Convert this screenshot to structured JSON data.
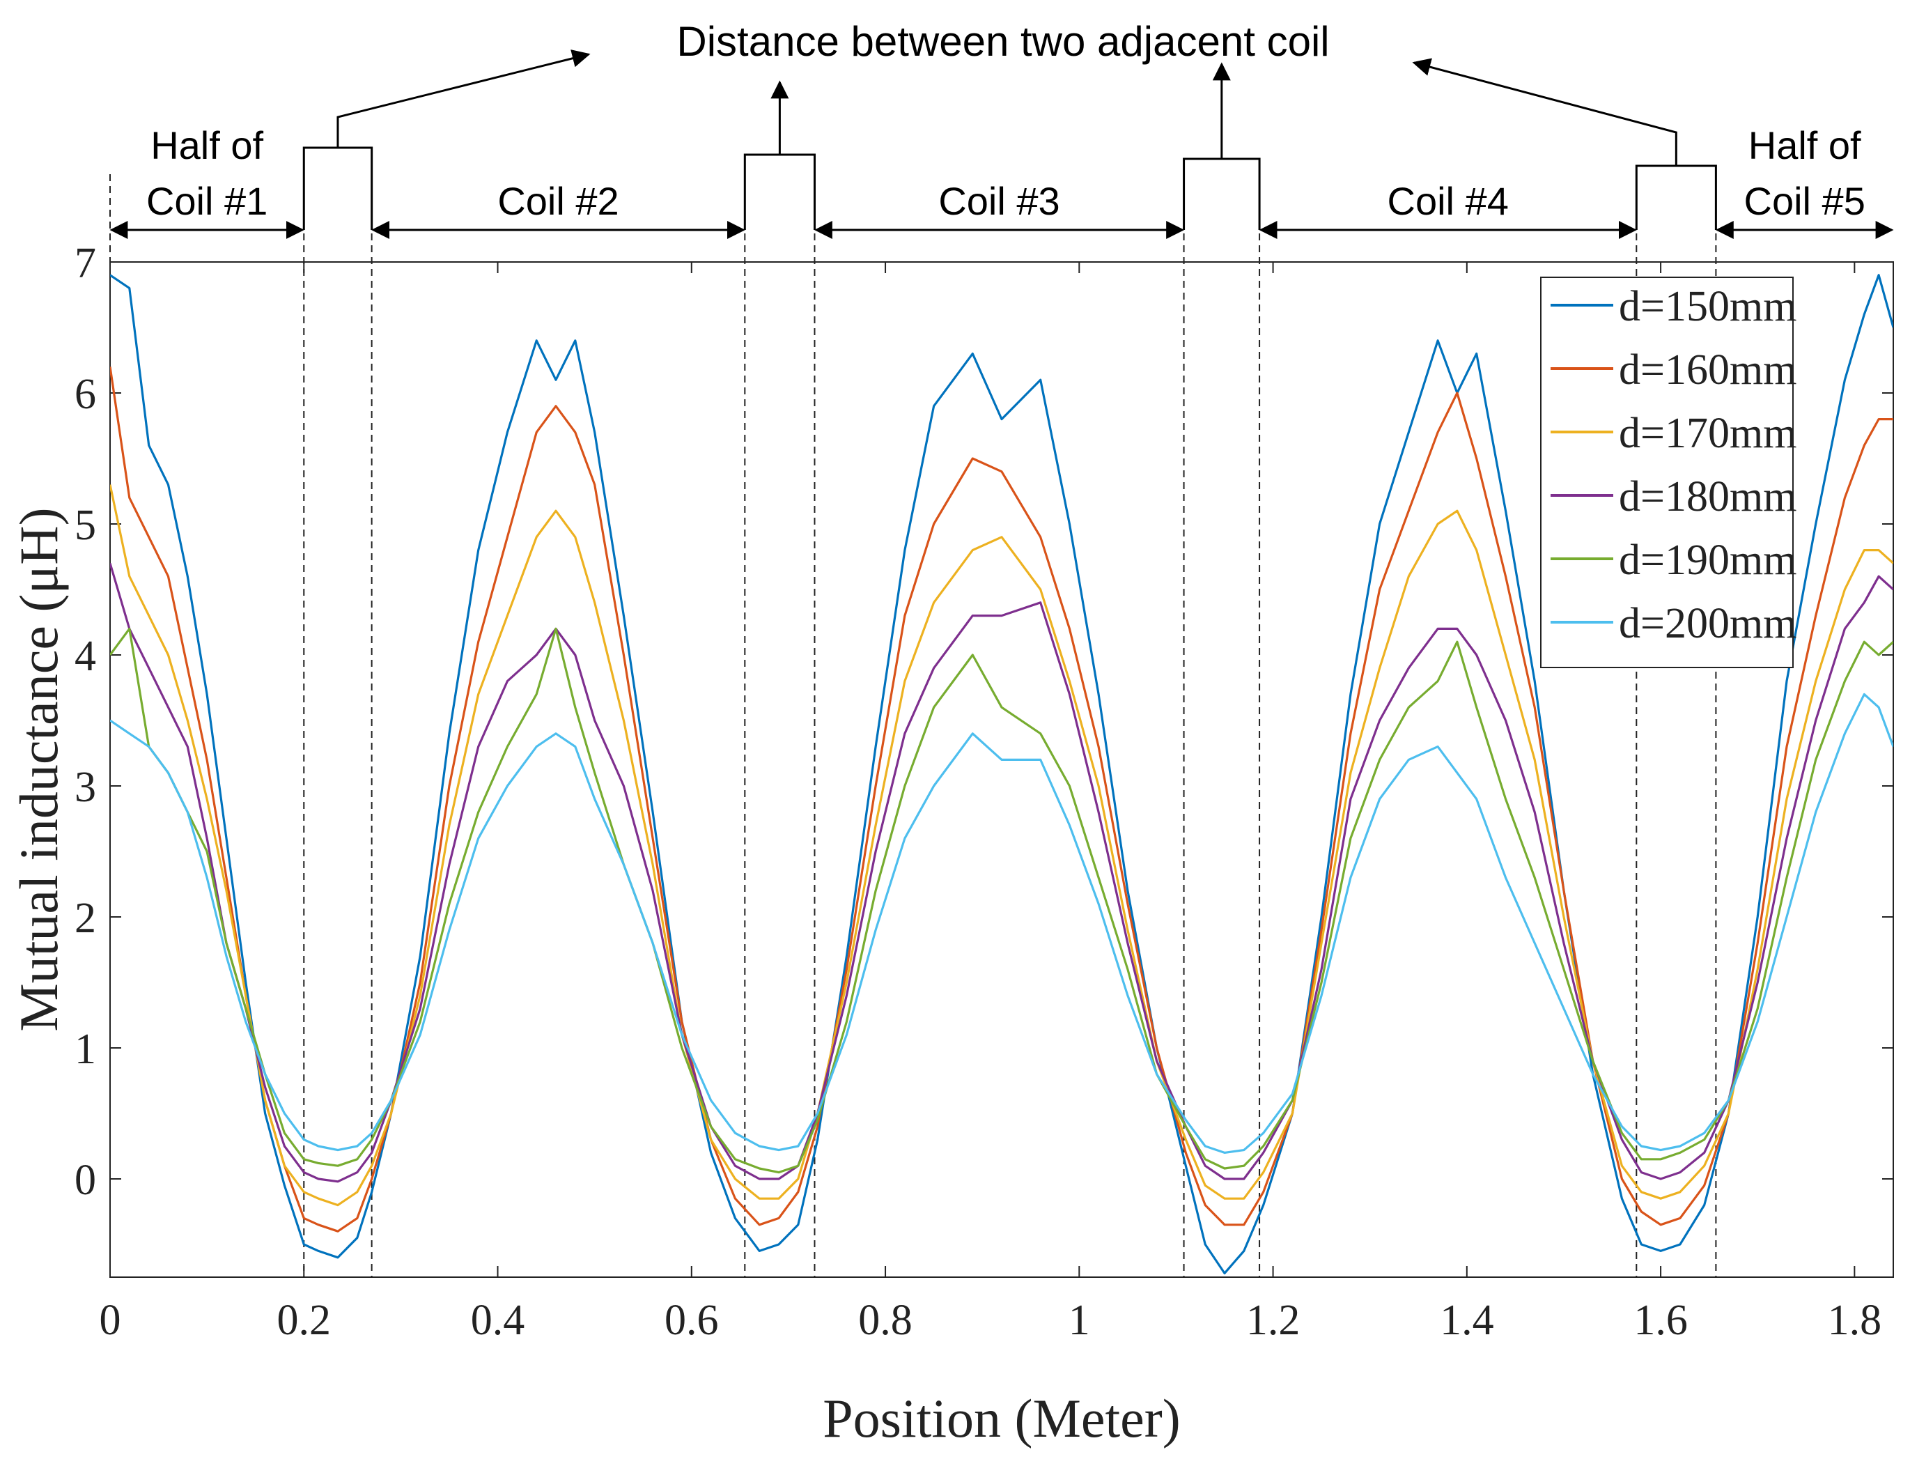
{
  "chart_data": {
    "type": "line",
    "title": "",
    "xlabel": "Position (Meter)",
    "ylabel": "Mutual inductance (μH)",
    "xlim": [
      0,
      1.84
    ],
    "ylim": [
      -0.75,
      7
    ],
    "xticks": [
      0,
      0.2,
      0.4,
      0.6,
      0.8,
      1,
      1.2,
      1.4,
      1.6,
      1.8
    ],
    "xtick_labels": [
      "0",
      "0.2",
      "0.4",
      "0.6",
      "0.8",
      "1",
      "1.2",
      "1.4",
      "1.6",
      "1.8"
    ],
    "yticks": [
      0,
      1,
      2,
      3,
      4,
      5,
      6,
      7
    ],
    "ytick_labels": [
      "0",
      "1",
      "2",
      "3",
      "4",
      "5",
      "6",
      "7"
    ],
    "grid": false,
    "legend_position": "top-right",
    "series": [
      {
        "name": "d=150mm",
        "color": "#0072BD",
        "x": [
          0,
          0.02,
          0.04,
          0.06,
          0.08,
          0.1,
          0.12,
          0.14,
          0.16,
          0.18,
          0.2,
          0.215,
          0.235,
          0.255,
          0.27,
          0.29,
          0.32,
          0.35,
          0.38,
          0.41,
          0.44,
          0.46,
          0.48,
          0.5,
          0.53,
          0.56,
          0.59,
          0.62,
          0.645,
          0.67,
          0.69,
          0.71,
          0.73,
          0.76,
          0.79,
          0.82,
          0.85,
          0.89,
          0.92,
          0.96,
          0.99,
          1.02,
          1.05,
          1.08,
          1.11,
          1.13,
          1.15,
          1.17,
          1.19,
          1.22,
          1.25,
          1.28,
          1.31,
          1.34,
          1.37,
          1.39,
          1.41,
          1.44,
          1.47,
          1.5,
          1.53,
          1.56,
          1.58,
          1.6,
          1.62,
          1.645,
          1.67,
          1.7,
          1.73,
          1.76,
          1.79,
          1.81,
          1.825,
          1.84
        ],
        "y": [
          6.9,
          6.8,
          5.6,
          5.3,
          4.6,
          3.7,
          2.6,
          1.5,
          0.5,
          -0.05,
          -0.5,
          -0.55,
          -0.6,
          -0.45,
          -0.1,
          0.5,
          1.7,
          3.4,
          4.8,
          5.7,
          6.4,
          6.1,
          6.4,
          5.7,
          4.3,
          2.8,
          1.2,
          0.2,
          -0.3,
          -0.55,
          -0.5,
          -0.35,
          0.3,
          1.7,
          3.3,
          4.8,
          5.9,
          6.3,
          5.8,
          6.1,
          5.0,
          3.7,
          2.2,
          1.0,
          0.1,
          -0.5,
          -0.72,
          -0.55,
          -0.2,
          0.5,
          2.0,
          3.7,
          5.0,
          5.7,
          6.4,
          6.0,
          6.3,
          5.1,
          3.8,
          2.2,
          0.8,
          -0.15,
          -0.5,
          -0.55,
          -0.5,
          -0.2,
          0.5,
          2.0,
          3.8,
          5.0,
          6.1,
          6.6,
          6.9,
          6.5
        ]
      },
      {
        "name": "d=160mm",
        "color": "#D95319",
        "x": [
          0,
          0.02,
          0.04,
          0.06,
          0.08,
          0.1,
          0.12,
          0.14,
          0.16,
          0.18,
          0.2,
          0.215,
          0.235,
          0.255,
          0.27,
          0.29,
          0.32,
          0.35,
          0.38,
          0.41,
          0.44,
          0.46,
          0.48,
          0.5,
          0.53,
          0.56,
          0.59,
          0.62,
          0.645,
          0.67,
          0.69,
          0.71,
          0.73,
          0.76,
          0.79,
          0.82,
          0.85,
          0.89,
          0.92,
          0.96,
          0.99,
          1.02,
          1.05,
          1.08,
          1.11,
          1.13,
          1.15,
          1.17,
          1.19,
          1.22,
          1.25,
          1.28,
          1.31,
          1.34,
          1.37,
          1.39,
          1.41,
          1.44,
          1.47,
          1.5,
          1.53,
          1.56,
          1.58,
          1.6,
          1.62,
          1.645,
          1.67,
          1.7,
          1.73,
          1.76,
          1.79,
          1.81,
          1.825,
          1.84
        ],
        "y": [
          6.2,
          5.2,
          4.9,
          4.6,
          3.9,
          3.2,
          2.3,
          1.4,
          0.6,
          0.1,
          -0.3,
          -0.35,
          -0.4,
          -0.3,
          0.0,
          0.5,
          1.5,
          3.0,
          4.1,
          4.9,
          5.7,
          5.9,
          5.7,
          5.3,
          4.0,
          2.6,
          1.2,
          0.3,
          -0.15,
          -0.35,
          -0.3,
          -0.1,
          0.4,
          1.6,
          3.0,
          4.3,
          5.0,
          5.5,
          5.4,
          4.9,
          4.2,
          3.3,
          2.1,
          1.0,
          0.2,
          -0.2,
          -0.35,
          -0.35,
          -0.1,
          0.5,
          1.9,
          3.4,
          4.5,
          5.1,
          5.7,
          6.0,
          5.5,
          4.6,
          3.6,
          2.2,
          0.9,
          0.0,
          -0.25,
          -0.35,
          -0.3,
          -0.05,
          0.5,
          1.8,
          3.3,
          4.3,
          5.2,
          5.6,
          5.8,
          5.8
        ]
      },
      {
        "name": "d=170mm",
        "color": "#EDB120",
        "x": [
          0,
          0.02,
          0.04,
          0.06,
          0.08,
          0.1,
          0.12,
          0.14,
          0.16,
          0.18,
          0.2,
          0.215,
          0.235,
          0.255,
          0.27,
          0.29,
          0.32,
          0.35,
          0.38,
          0.41,
          0.44,
          0.46,
          0.48,
          0.5,
          0.53,
          0.56,
          0.59,
          0.62,
          0.645,
          0.67,
          0.69,
          0.71,
          0.73,
          0.76,
          0.79,
          0.82,
          0.85,
          0.89,
          0.92,
          0.96,
          0.99,
          1.02,
          1.05,
          1.08,
          1.11,
          1.13,
          1.15,
          1.17,
          1.19,
          1.22,
          1.25,
          1.28,
          1.31,
          1.34,
          1.37,
          1.39,
          1.41,
          1.44,
          1.47,
          1.5,
          1.53,
          1.56,
          1.58,
          1.6,
          1.62,
          1.645,
          1.67,
          1.7,
          1.73,
          1.76,
          1.79,
          1.81,
          1.825,
          1.84
        ],
        "y": [
          5.3,
          4.6,
          4.3,
          4.0,
          3.5,
          2.9,
          2.2,
          1.4,
          0.6,
          0.1,
          -0.1,
          -0.15,
          -0.2,
          -0.1,
          0.1,
          0.5,
          1.4,
          2.7,
          3.7,
          4.3,
          4.9,
          5.1,
          4.9,
          4.4,
          3.5,
          2.4,
          1.1,
          0.3,
          0.0,
          -0.15,
          -0.15,
          0.0,
          0.5,
          1.5,
          2.7,
          3.8,
          4.4,
          4.8,
          4.9,
          4.5,
          3.8,
          3.0,
          1.9,
          0.9,
          0.3,
          -0.05,
          -0.15,
          -0.15,
          0.05,
          0.5,
          1.8,
          3.1,
          3.9,
          4.6,
          5.0,
          5.1,
          4.8,
          4.0,
          3.2,
          2.0,
          0.9,
          0.1,
          -0.1,
          -0.15,
          -0.1,
          0.1,
          0.5,
          1.6,
          2.9,
          3.8,
          4.5,
          4.8,
          4.8,
          4.7
        ]
      },
      {
        "name": "d=180mm",
        "color": "#7E2F8E",
        "x": [
          0,
          0.02,
          0.04,
          0.06,
          0.08,
          0.1,
          0.12,
          0.14,
          0.16,
          0.18,
          0.2,
          0.215,
          0.235,
          0.255,
          0.27,
          0.29,
          0.32,
          0.35,
          0.38,
          0.41,
          0.44,
          0.46,
          0.48,
          0.5,
          0.53,
          0.56,
          0.59,
          0.62,
          0.645,
          0.67,
          0.69,
          0.71,
          0.73,
          0.76,
          0.79,
          0.82,
          0.85,
          0.89,
          0.92,
          0.96,
          0.99,
          1.02,
          1.05,
          1.08,
          1.11,
          1.13,
          1.15,
          1.17,
          1.19,
          1.22,
          1.25,
          1.28,
          1.31,
          1.34,
          1.37,
          1.39,
          1.41,
          1.44,
          1.47,
          1.5,
          1.53,
          1.56,
          1.58,
          1.6,
          1.62,
          1.645,
          1.67,
          1.7,
          1.73,
          1.76,
          1.79,
          1.81,
          1.825,
          1.84
        ],
        "y": [
          4.7,
          4.2,
          3.9,
          3.6,
          3.3,
          2.6,
          1.8,
          1.3,
          0.7,
          0.25,
          0.05,
          0.0,
          -0.02,
          0.05,
          0.2,
          0.6,
          1.3,
          2.4,
          3.3,
          3.8,
          4.0,
          4.2,
          4.0,
          3.5,
          3.0,
          2.2,
          1.1,
          0.4,
          0.1,
          0.0,
          0.0,
          0.1,
          0.5,
          1.4,
          2.5,
          3.4,
          3.9,
          4.3,
          4.3,
          4.4,
          3.7,
          2.8,
          1.8,
          0.9,
          0.4,
          0.1,
          0.0,
          0.0,
          0.2,
          0.6,
          1.6,
          2.9,
          3.5,
          3.9,
          4.2,
          4.2,
          4.0,
          3.5,
          2.8,
          1.8,
          0.9,
          0.3,
          0.05,
          0.0,
          0.05,
          0.2,
          0.6,
          1.5,
          2.6,
          3.5,
          4.2,
          4.4,
          4.6,
          4.5
        ]
      },
      {
        "name": "d=190mm",
        "color": "#77AC30",
        "x": [
          0,
          0.02,
          0.04,
          0.06,
          0.08,
          0.1,
          0.12,
          0.14,
          0.16,
          0.18,
          0.2,
          0.215,
          0.235,
          0.255,
          0.27,
          0.29,
          0.32,
          0.35,
          0.38,
          0.41,
          0.44,
          0.46,
          0.48,
          0.5,
          0.53,
          0.56,
          0.59,
          0.62,
          0.645,
          0.67,
          0.69,
          0.71,
          0.73,
          0.76,
          0.79,
          0.82,
          0.85,
          0.89,
          0.92,
          0.96,
          0.99,
          1.02,
          1.05,
          1.08,
          1.11,
          1.13,
          1.15,
          1.17,
          1.19,
          1.22,
          1.25,
          1.28,
          1.31,
          1.34,
          1.37,
          1.39,
          1.41,
          1.44,
          1.47,
          1.5,
          1.53,
          1.56,
          1.58,
          1.6,
          1.62,
          1.645,
          1.67,
          1.7,
          1.73,
          1.76,
          1.79,
          1.81,
          1.825,
          1.84
        ],
        "y": [
          4.0,
          4.2,
          3.3,
          3.1,
          2.8,
          2.5,
          1.8,
          1.3,
          0.8,
          0.35,
          0.15,
          0.12,
          0.1,
          0.15,
          0.3,
          0.6,
          1.2,
          2.1,
          2.8,
          3.3,
          3.7,
          4.2,
          3.6,
          3.1,
          2.4,
          1.8,
          1.0,
          0.4,
          0.15,
          0.08,
          0.05,
          0.1,
          0.45,
          1.2,
          2.2,
          3.0,
          3.6,
          4.0,
          3.6,
          3.4,
          3.0,
          2.3,
          1.6,
          0.8,
          0.4,
          0.15,
          0.08,
          0.1,
          0.25,
          0.6,
          1.5,
          2.6,
          3.2,
          3.6,
          3.8,
          4.1,
          3.6,
          2.9,
          2.3,
          1.6,
          0.9,
          0.35,
          0.15,
          0.15,
          0.2,
          0.3,
          0.6,
          1.3,
          2.3,
          3.2,
          3.8,
          4.1,
          4.0,
          4.1
        ]
      },
      {
        "name": "d=200mm",
        "color": "#4DBEEE",
        "x": [
          0,
          0.02,
          0.04,
          0.06,
          0.08,
          0.1,
          0.12,
          0.14,
          0.16,
          0.18,
          0.2,
          0.215,
          0.235,
          0.255,
          0.27,
          0.29,
          0.32,
          0.35,
          0.38,
          0.41,
          0.44,
          0.46,
          0.48,
          0.5,
          0.53,
          0.56,
          0.59,
          0.62,
          0.645,
          0.67,
          0.69,
          0.71,
          0.73,
          0.76,
          0.79,
          0.82,
          0.85,
          0.89,
          0.92,
          0.96,
          0.99,
          1.02,
          1.05,
          1.08,
          1.11,
          1.13,
          1.15,
          1.17,
          1.19,
          1.22,
          1.25,
          1.28,
          1.31,
          1.34,
          1.37,
          1.39,
          1.41,
          1.44,
          1.47,
          1.5,
          1.53,
          1.56,
          1.58,
          1.6,
          1.62,
          1.645,
          1.67,
          1.7,
          1.73,
          1.76,
          1.79,
          1.81,
          1.825,
          1.84
        ],
        "y": [
          3.5,
          3.4,
          3.3,
          3.1,
          2.8,
          2.3,
          1.7,
          1.2,
          0.8,
          0.5,
          0.3,
          0.25,
          0.22,
          0.25,
          0.35,
          0.6,
          1.1,
          1.9,
          2.6,
          3.0,
          3.3,
          3.4,
          3.3,
          2.9,
          2.4,
          1.8,
          1.1,
          0.6,
          0.35,
          0.25,
          0.22,
          0.25,
          0.5,
          1.1,
          1.9,
          2.6,
          3.0,
          3.4,
          3.2,
          3.2,
          2.7,
          2.1,
          1.4,
          0.8,
          0.45,
          0.25,
          0.2,
          0.22,
          0.35,
          0.65,
          1.4,
          2.3,
          2.9,
          3.2,
          3.3,
          3.1,
          2.9,
          2.3,
          1.8,
          1.3,
          0.8,
          0.4,
          0.25,
          0.22,
          0.25,
          0.35,
          0.6,
          1.2,
          2.0,
          2.8,
          3.4,
          3.7,
          3.6,
          3.3
        ]
      }
    ],
    "gaps": [
      {
        "start": 0.2,
        "end": 0.27
      },
      {
        "start": 0.655,
        "end": 0.727
      },
      {
        "start": 1.108,
        "end": 1.186
      },
      {
        "start": 1.575,
        "end": 1.657
      }
    ],
    "coil_spans": [
      {
        "label_lines": [
          "Half of",
          "Coil #1"
        ],
        "start": 0.0,
        "end": 0.2
      },
      {
        "label_lines": [
          "Coil #2"
        ],
        "start": 0.27,
        "end": 0.655
      },
      {
        "label_lines": [
          "Coil #3"
        ],
        "start": 0.727,
        "end": 1.108
      },
      {
        "label_lines": [
          "Coil #4"
        ],
        "start": 1.186,
        "end": 1.575
      },
      {
        "label_lines": [
          "Half of",
          "Coil #5"
        ],
        "start": 1.657,
        "end": 1.84
      }
    ],
    "annotation": {
      "text": "Distance between two adjacent coil"
    }
  }
}
